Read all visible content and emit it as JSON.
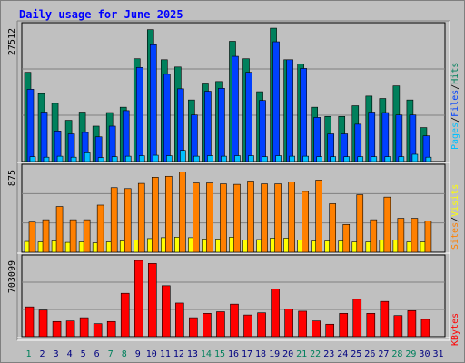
{
  "title": "Daily usage for June 2025",
  "colors": {
    "hits": "#00805c",
    "files": "#0040ff",
    "pages": "#00c0ff",
    "visits": "#ffff00",
    "sites": "#ff8000",
    "kbytes": "#ff0000",
    "weekend_day": "#00805c",
    "weekday": "#000080"
  },
  "chart_data": [
    {
      "type": "bar",
      "name": "hits-files-pages",
      "y_label": "27512",
      "legend": [
        "Pages",
        "/",
        "Files",
        "/",
        "Hits"
      ],
      "ylim": [
        0,
        27512
      ],
      "categories": [
        "1",
        "2",
        "3",
        "4",
        "5",
        "6",
        "7",
        "8",
        "9",
        "10",
        "11",
        "12",
        "13",
        "14",
        "15",
        "16",
        "17",
        "18",
        "19",
        "20",
        "21",
        "22",
        "23",
        "24",
        "25",
        "26",
        "27",
        "28",
        "29",
        "30",
        "31"
      ],
      "weekend_days": [
        "1",
        "7",
        "8",
        "14",
        "15",
        "21",
        "22",
        "28",
        "29"
      ],
      "series": [
        {
          "name": "Hits",
          "values": [
            18400,
            14000,
            12000,
            8500,
            10200,
            7300,
            10100,
            11200,
            21200,
            27200,
            21000,
            19500,
            12700,
            16000,
            16500,
            24800,
            21200,
            14400,
            27500,
            21000,
            20100,
            11200,
            9300,
            9300,
            11500,
            13500,
            13000,
            15600,
            12700,
            7000,
            null
          ]
        },
        {
          "name": "Files",
          "values": [
            14900,
            10200,
            6300,
            5700,
            6000,
            5100,
            7300,
            10500,
            19400,
            24100,
            18000,
            15000,
            9600,
            14500,
            15100,
            21700,
            18400,
            12600,
            24700,
            21000,
            19200,
            9100,
            5700,
            5700,
            7700,
            10200,
            10100,
            9600,
            9600,
            5300,
            null
          ]
        },
        {
          "name": "Pages",
          "values": [
            1000,
            900,
            1100,
            900,
            1800,
            800,
            1000,
            1100,
            1200,
            1300,
            1200,
            2300,
            1100,
            1200,
            1100,
            1200,
            1200,
            1000,
            1200,
            1100,
            1100,
            1000,
            1000,
            1000,
            1000,
            1000,
            1000,
            1000,
            1500,
            900,
            null
          ]
        }
      ]
    },
    {
      "type": "bar",
      "name": "visits-sites",
      "y_label": "875",
      "legend": [
        "Sites",
        "/",
        "Visits"
      ],
      "ylim": [
        0,
        875
      ],
      "categories": [
        "1",
        "2",
        "3",
        "4",
        "5",
        "6",
        "7",
        "8",
        "9",
        "10",
        "11",
        "12",
        "13",
        "14",
        "15",
        "16",
        "17",
        "18",
        "19",
        "20",
        "21",
        "22",
        "23",
        "24",
        "25",
        "26",
        "27",
        "28",
        "29",
        "30",
        "31"
      ],
      "series": [
        {
          "name": "Visits",
          "values": [
            115,
            110,
            120,
            105,
            110,
            100,
            110,
            120,
            130,
            145,
            155,
            160,
            155,
            140,
            140,
            160,
            130,
            135,
            150,
            150,
            130,
            120,
            120,
            120,
            110,
            110,
            130,
            130,
            110,
            110,
            null
          ]
        },
        {
          "name": "Sites",
          "values": [
            320,
            345,
            485,
            345,
            345,
            500,
            685,
            675,
            730,
            795,
            805,
            850,
            735,
            735,
            725,
            720,
            755,
            725,
            725,
            745,
            645,
            765,
            515,
            295,
            610,
            345,
            585,
            360,
            360,
            330,
            null
          ]
        }
      ]
    },
    {
      "type": "bar",
      "name": "kbytes",
      "y_label": "703099",
      "legend": [
        "KBytes"
      ],
      "ylim": [
        0,
        703099
      ],
      "categories": [
        "1",
        "2",
        "3",
        "4",
        "5",
        "6",
        "7",
        "8",
        "9",
        "10",
        "11",
        "12",
        "13",
        "14",
        "15",
        "16",
        "17",
        "18",
        "19",
        "20",
        "21",
        "22",
        "23",
        "24",
        "25",
        "26",
        "27",
        "28",
        "29",
        "30",
        "31"
      ],
      "series": [
        {
          "name": "KBytes",
          "values": [
            275000,
            245000,
            140000,
            145000,
            175000,
            120000,
            140000,
            400000,
            703000,
            675000,
            470000,
            310000,
            175000,
            215000,
            230000,
            300000,
            200000,
            220000,
            440000,
            255000,
            235000,
            145000,
            115000,
            215000,
            345000,
            215000,
            325000,
            195000,
            240000,
            160000,
            null
          ]
        }
      ]
    }
  ]
}
